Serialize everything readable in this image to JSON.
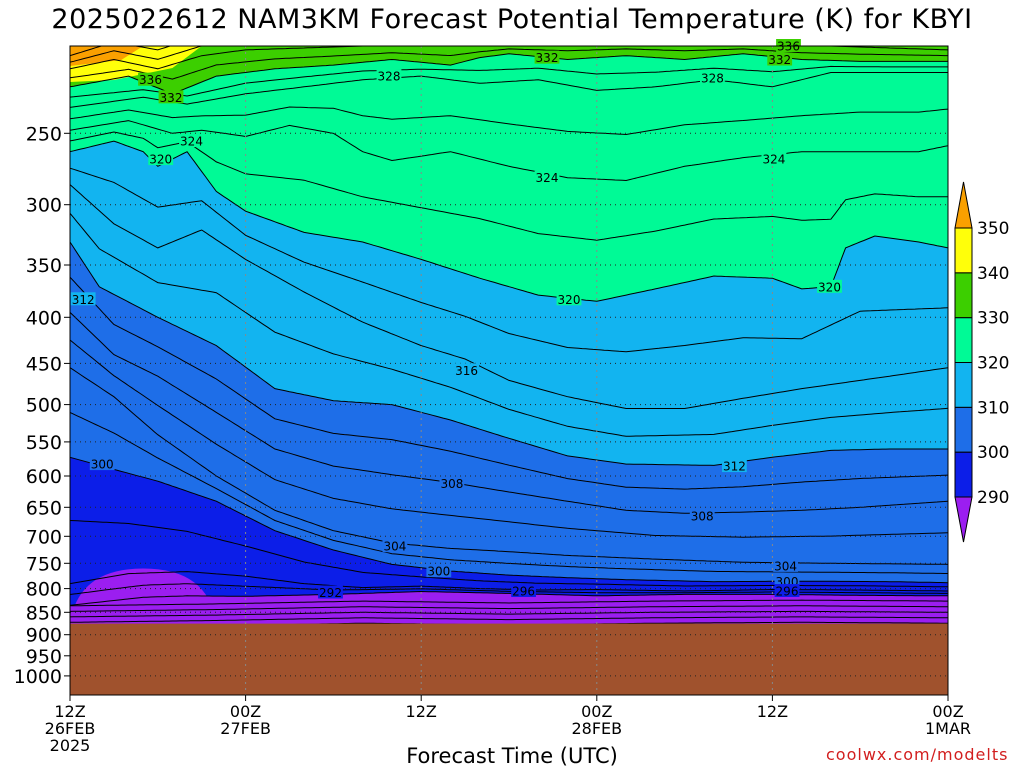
{
  "chart_data": {
    "type": "heatmap",
    "title": "2025022612 NAM3KM Forecast Potential Temperature (K) for KBYI",
    "xlabel": "Forecast Time (UTC)",
    "ylabel": "",
    "x_range_hours": [
      0,
      60
    ],
    "x_ticks": [
      {
        "hour": 0,
        "lines": [
          "12Z",
          "26FEB",
          "2025"
        ]
      },
      {
        "hour": 12,
        "lines": [
          "00Z",
          "27FEB"
        ]
      },
      {
        "hour": 24,
        "lines": [
          "12Z"
        ]
      },
      {
        "hour": 36,
        "lines": [
          "00Z",
          "28FEB"
        ]
      },
      {
        "hour": 48,
        "lines": [
          "12Z"
        ]
      },
      {
        "hour": 60,
        "lines": [
          "00Z",
          "1MAR"
        ]
      }
    ],
    "y_scale": "log",
    "y_range_hPa": [
      1050,
      200
    ],
    "y_ticks": [
      250,
      300,
      350,
      400,
      450,
      500,
      550,
      600,
      650,
      700,
      750,
      800,
      850,
      900,
      950,
      1000
    ],
    "ground_pressure_hPa": 875,
    "grid": true,
    "colorbar": {
      "levels": [
        290,
        300,
        310,
        320,
        330,
        340,
        350
      ],
      "colors": [
        "#9b1ef0",
        "#0c1ee8",
        "#1e6ee8",
        "#12b4f0",
        "#00fa96",
        "#3ccf00",
        "#ffff0a",
        "#faa000"
      ],
      "placement": "right"
    },
    "contour_interval_K": 2,
    "contour_labels": [
      {
        "value": 336,
        "hour": 5.5,
        "p": 218
      },
      {
        "value": 332,
        "hour": 6.9,
        "p": 228
      },
      {
        "value": 324,
        "hour": 8.3,
        "p": 255
      },
      {
        "value": 320,
        "hour": 6.2,
        "p": 267
      },
      {
        "value": 328,
        "hour": 21.8,
        "p": 216
      },
      {
        "value": 332,
        "hour": 32.6,
        "p": 206
      },
      {
        "value": 336,
        "hour": 49.1,
        "p": 200
      },
      {
        "value": 332,
        "hour": 48.5,
        "p": 207
      },
      {
        "value": 328,
        "hour": 43.9,
        "p": 217
      },
      {
        "value": 324,
        "hour": 32.6,
        "p": 280
      },
      {
        "value": 324,
        "hour": 48.1,
        "p": 267
      },
      {
        "value": 320,
        "hour": 34.1,
        "p": 382
      },
      {
        "value": 320,
        "hour": 51.9,
        "p": 370
      },
      {
        "value": 312,
        "hour": 0.9,
        "p": 382
      },
      {
        "value": 316,
        "hour": 27.1,
        "p": 458
      },
      {
        "value": 312,
        "hour": 45.4,
        "p": 585
      },
      {
        "value": 308,
        "hour": 26.1,
        "p": 612
      },
      {
        "value": 308,
        "hour": 43.2,
        "p": 665
      },
      {
        "value": 304,
        "hour": 22.2,
        "p": 718
      },
      {
        "value": 304,
        "hour": 48.9,
        "p": 755
      },
      {
        "value": 300,
        "hour": 25.2,
        "p": 765
      },
      {
        "value": 300,
        "hour": 2.2,
        "p": 582
      },
      {
        "value": 300,
        "hour": 49.0,
        "p": 786
      },
      {
        "value": 296,
        "hour": 31.0,
        "p": 805
      },
      {
        "value": 296,
        "hour": 49.0,
        "p": 805
      },
      {
        "value": 292,
        "hour": 17.8,
        "p": 808
      }
    ]
  },
  "credit": "coolwx.com/modelts"
}
